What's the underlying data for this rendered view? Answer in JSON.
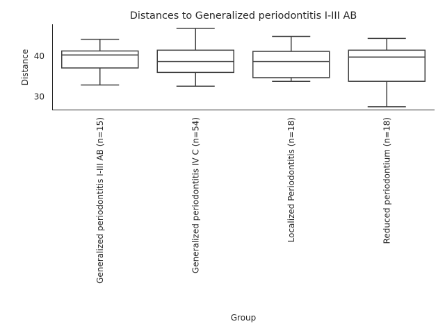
{
  "chart_data": {
    "type": "box",
    "title": "Distances to Generalized periodontitis I-III AB",
    "xlabel": "Group",
    "ylabel": "Distance",
    "ylim": [
      26.8,
      47.9
    ],
    "yticks": [
      30,
      40
    ],
    "grid": false,
    "categories": [
      "Generalized periodontitis I-III AB (n=15)",
      "Generalized periodontitis IV C (n=54)",
      "Localized Periodontitis (n=18)",
      "Reduced periodontium (n=18)"
    ],
    "boxes": [
      {
        "whisker_low": 32.9,
        "q1": 37.1,
        "median": 40.3,
        "q3": 41.3,
        "whisker_high": 44.2
      },
      {
        "whisker_low": 32.6,
        "q1": 36.0,
        "median": 38.7,
        "q3": 41.5,
        "whisker_high": 46.9
      },
      {
        "whisker_low": 33.8,
        "q1": 34.7,
        "median": 38.7,
        "q3": 41.2,
        "whisker_high": 44.9
      },
      {
        "whisker_low": 27.5,
        "q1": 33.8,
        "median": 39.8,
        "q3": 41.5,
        "whisker_high": 44.4
      }
    ]
  }
}
